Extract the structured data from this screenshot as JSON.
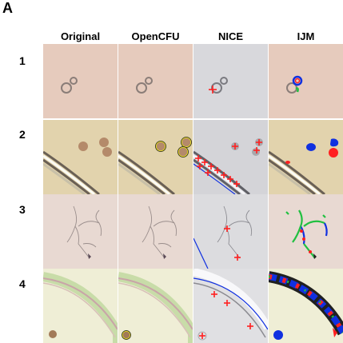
{
  "panel_label": "A",
  "columns": [
    "Original",
    "OpenCFU",
    "NICE",
    "IJM"
  ],
  "rows": [
    "1",
    "2",
    "3",
    "4"
  ],
  "colors": {
    "bg_row1": "#e6cbbd",
    "bg_row2": "#e2d3ad",
    "bg_row3": "#e8d9d2",
    "bg_row4": "#efeed6",
    "nice_bg": "#dcdcdf",
    "marker_red": "#ff2020",
    "detect_blue": "#1030e0",
    "detect_yellow": "#e8e020",
    "detect_green": "#20c040"
  }
}
